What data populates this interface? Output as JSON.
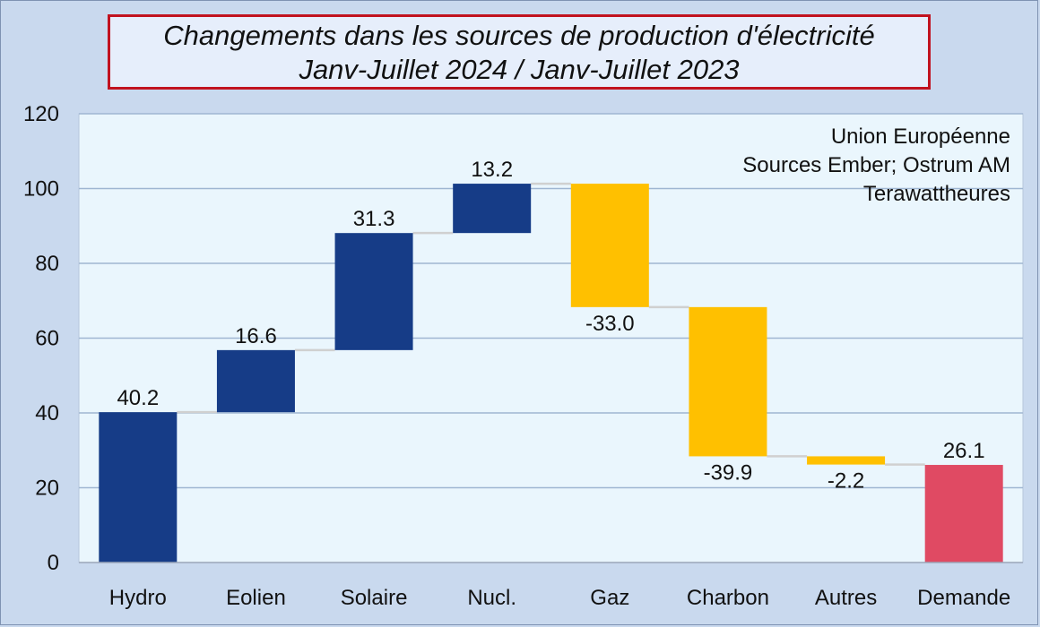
{
  "chart_data": {
    "type": "bar",
    "subtype": "waterfall",
    "title": "Changements dans les sources de production d'électricité",
    "subtitle": "Janv-Juillet 2024 / Janv-Juillet 2023",
    "annotations": [
      "Union Européenne",
      "Sources Ember; Ostrum AM",
      "Terawattheures"
    ],
    "categories": [
      "Hydro",
      "Eolien",
      "Solaire",
      "Nucl.",
      "Gaz",
      "Charbon",
      "Autres",
      "Demande"
    ],
    "values": [
      40.2,
      16.6,
      31.3,
      13.2,
      -33.0,
      -39.9,
      -2.2,
      26.1
    ],
    "value_labels": [
      "40.2",
      "16.6",
      "31.3",
      "13.2",
      "-33.0",
      "-39.9",
      "-2.2",
      "26.1"
    ],
    "is_total": [
      false,
      false,
      false,
      false,
      false,
      false,
      false,
      true
    ],
    "ylim": [
      0,
      120
    ],
    "yticks": [
      0,
      20,
      40,
      60,
      80,
      100,
      120
    ],
    "grid": true,
    "colors": {
      "increase": "#163c87",
      "decrease": "#ffc000",
      "total": "#e04a63",
      "plot_bg": "#eaf6fd",
      "grid": "#9fb6d2",
      "connector": "#d0d0d0"
    }
  }
}
